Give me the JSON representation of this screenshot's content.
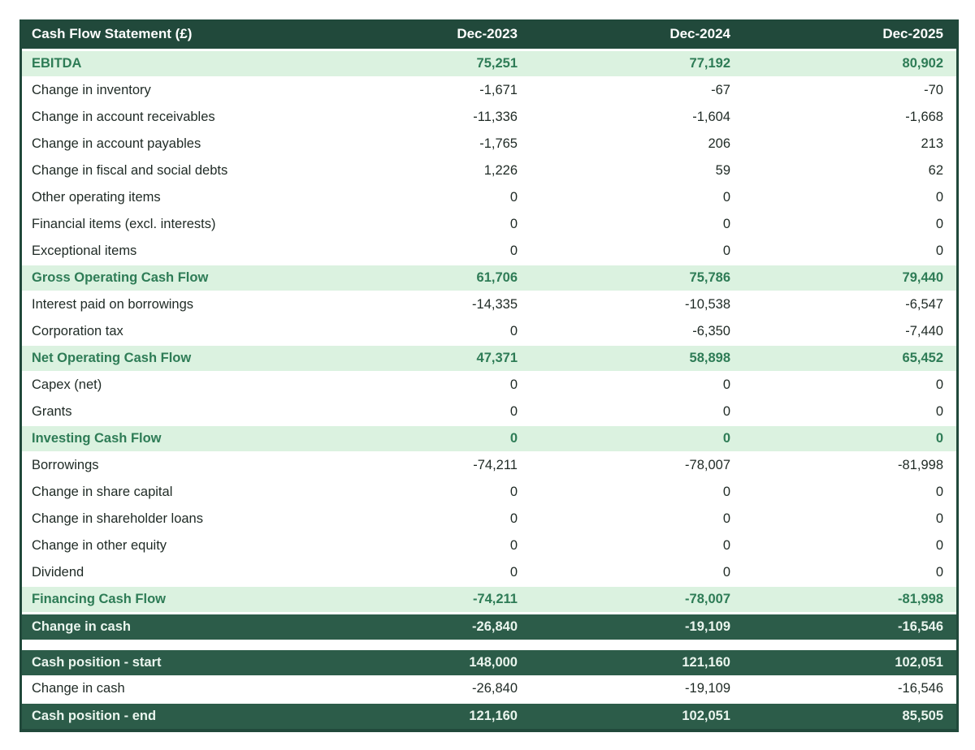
{
  "chart_data": {
    "type": "table",
    "title": "Cash Flow Statement (£)",
    "columns": [
      "Dec-2023",
      "Dec-2024",
      "Dec-2025"
    ],
    "rows": [
      {
        "label": "EBITDA",
        "style": "highlight",
        "values": [
          "75,251",
          "77,192",
          "80,902"
        ]
      },
      {
        "label": "Change in inventory",
        "style": "normal",
        "values": [
          "-1,671",
          "-67",
          "-70"
        ]
      },
      {
        "label": "Change in account receivables",
        "style": "normal",
        "values": [
          "-11,336",
          "-1,604",
          "-1,668"
        ]
      },
      {
        "label": "Change in account payables",
        "style": "normal",
        "values": [
          "-1,765",
          "206",
          "213"
        ]
      },
      {
        "label": "Change in fiscal and social debts",
        "style": "normal",
        "values": [
          "1,226",
          "59",
          "62"
        ]
      },
      {
        "label": "Other operating items",
        "style": "normal",
        "values": [
          "0",
          "0",
          "0"
        ]
      },
      {
        "label": "Financial items (excl. interests)",
        "style": "normal",
        "values": [
          "0",
          "0",
          "0"
        ]
      },
      {
        "label": "Exceptional items",
        "style": "normal",
        "values": [
          "0",
          "0",
          "0"
        ]
      },
      {
        "label": "Gross Operating Cash Flow",
        "style": "highlight",
        "values": [
          "61,706",
          "75,786",
          "79,440"
        ]
      },
      {
        "label": "Interest paid on borrowings",
        "style": "normal",
        "values": [
          "-14,335",
          "-10,538",
          "-6,547"
        ]
      },
      {
        "label": "Corporation tax",
        "style": "normal",
        "values": [
          "0",
          "-6,350",
          "-7,440"
        ]
      },
      {
        "label": "Net Operating Cash Flow",
        "style": "highlight",
        "values": [
          "47,371",
          "58,898",
          "65,452"
        ]
      },
      {
        "label": "Capex (net)",
        "style": "normal",
        "values": [
          "0",
          "0",
          "0"
        ]
      },
      {
        "label": "Grants",
        "style": "normal",
        "values": [
          "0",
          "0",
          "0"
        ]
      },
      {
        "label": "Investing Cash Flow",
        "style": "highlight",
        "values": [
          "0",
          "0",
          "0"
        ]
      },
      {
        "label": "Borrowings",
        "style": "normal",
        "values": [
          "-74,211",
          "-78,007",
          "-81,998"
        ]
      },
      {
        "label": "Change in share capital",
        "style": "normal",
        "values": [
          "0",
          "0",
          "0"
        ]
      },
      {
        "label": "Change in shareholder loans",
        "style": "normal",
        "values": [
          "0",
          "0",
          "0"
        ]
      },
      {
        "label": "Change in other equity",
        "style": "normal",
        "values": [
          "0",
          "0",
          "0"
        ]
      },
      {
        "label": "Dividend",
        "style": "normal",
        "values": [
          "0",
          "0",
          "0"
        ]
      },
      {
        "label": "Financing Cash Flow",
        "style": "highlight",
        "values": [
          "-74,211",
          "-78,007",
          "-81,998"
        ]
      },
      {
        "label": "Change in cash",
        "style": "dark",
        "values": [
          "-26,840",
          "-19,109",
          "-16,546"
        ]
      },
      {
        "label": "",
        "style": "spacer",
        "values": []
      },
      {
        "label": "Cash position - start",
        "style": "dark",
        "values": [
          "148,000",
          "121,160",
          "102,051"
        ]
      },
      {
        "label": "Change in cash",
        "style": "normal",
        "values": [
          "-26,840",
          "-19,109",
          "-16,546"
        ]
      },
      {
        "label": "Cash position - end",
        "style": "dark",
        "values": [
          "121,160",
          "102,051",
          "85,505"
        ]
      }
    ],
    "colors": {
      "header_bg": "#21493B",
      "dark_row_bg": "#2C5C49",
      "highlight_bg": "#DBF2E0",
      "highlight_text": "#2E7C56",
      "header_text": "#FFFFFF",
      "dark_row_text": "#EAF5EE",
      "body_text": "#1F2A25"
    },
    "layout": {
      "grid": "off",
      "legend": "none"
    }
  }
}
